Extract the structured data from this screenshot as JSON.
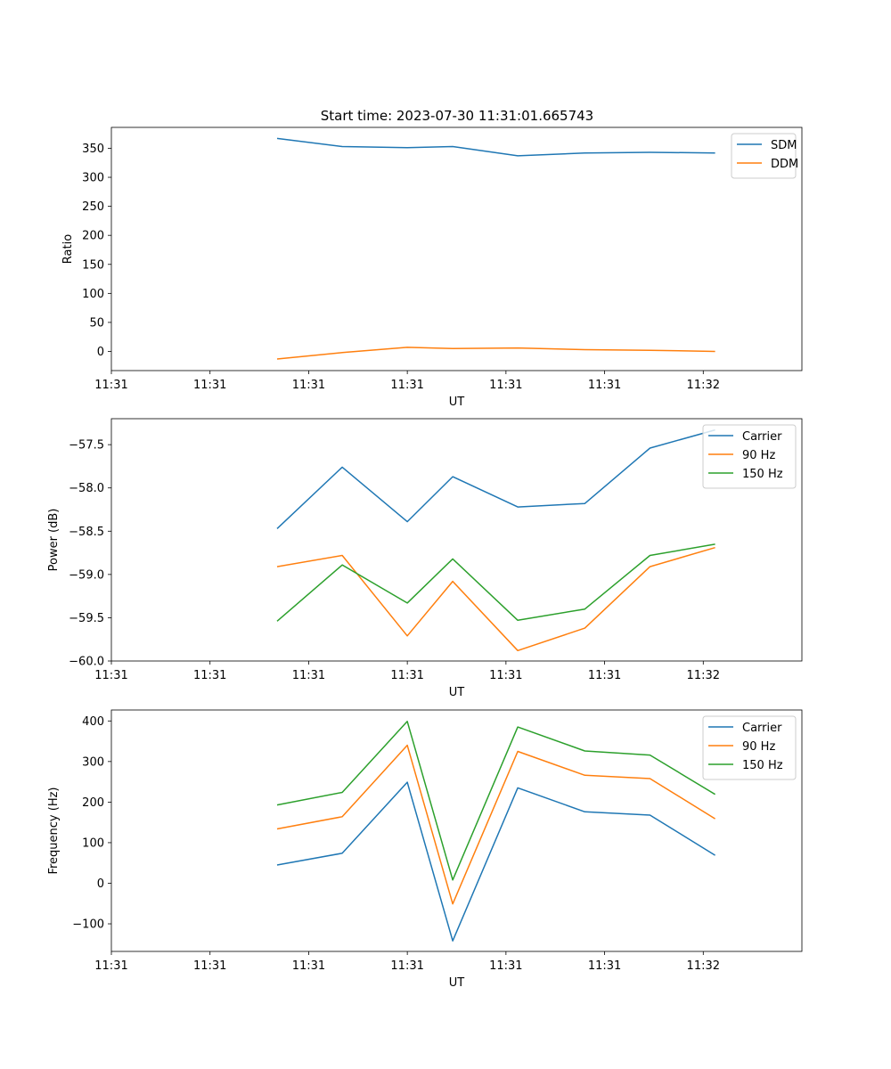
{
  "figure_title": "Start time: 2023-07-30 11:31:01.665743",
  "chart_data": [
    {
      "type": "line",
      "xlabel": "UT",
      "ylabel": "Ratio",
      "x": [
        0.84,
        1.17,
        1.5,
        1.73,
        2.06,
        2.4,
        2.73,
        3.06
      ],
      "xlim": [
        0.0,
        3.5
      ],
      "x_ticks": [
        0.0,
        0.5,
        1.0,
        1.5,
        2.0,
        2.5,
        3.0
      ],
      "x_ticklabels": [
        "11:31",
        "11:31",
        "11:31",
        "11:31",
        "11:31",
        "11:31",
        "11:32"
      ],
      "ylim": [
        -33,
        386
      ],
      "y_ticks": [
        0,
        50,
        100,
        150,
        200,
        250,
        300,
        350
      ],
      "y_ticklabels": [
        "0",
        "50",
        "100",
        "150",
        "200",
        "250",
        "300",
        "350"
      ],
      "legend_position": "top-right",
      "series": [
        {
          "name": "SDM",
          "color": "#1f77b4",
          "values": [
            367,
            353,
            351,
            353,
            337,
            342,
            343,
            342
          ]
        },
        {
          "name": "DDM",
          "color": "#ff7f0e",
          "values": [
            -13,
            -2,
            7,
            5,
            6,
            3,
            2,
            0
          ]
        }
      ]
    },
    {
      "type": "line",
      "xlabel": "UT",
      "ylabel": "Power (dB)",
      "x": [
        0.84,
        1.17,
        1.5,
        1.73,
        2.06,
        2.4,
        2.73,
        3.06
      ],
      "xlim": [
        0.0,
        3.5
      ],
      "x_ticks": [
        0.0,
        0.5,
        1.0,
        1.5,
        2.0,
        2.5,
        3.0
      ],
      "x_ticklabels": [
        "11:31",
        "11:31",
        "11:31",
        "11:31",
        "11:31",
        "11:31",
        "11:32"
      ],
      "ylim": [
        -60.0,
        -57.2
      ],
      "y_ticks": [
        -60.0,
        -59.5,
        -59.0,
        -58.5,
        -58.0,
        -57.5
      ],
      "y_ticklabels": [
        "−60.0",
        "−59.5",
        "−59.0",
        "−58.5",
        "−58.0",
        "−57.5"
      ],
      "legend_position": "top-right",
      "series": [
        {
          "name": "Carrier",
          "color": "#1f77b4",
          "values": [
            -58.47,
            -57.76,
            -58.39,
            -57.87,
            -58.22,
            -58.18,
            -57.54,
            -57.33
          ]
        },
        {
          "name": "90 Hz",
          "color": "#ff7f0e",
          "values": [
            -58.91,
            -58.78,
            -59.71,
            -59.08,
            -59.88,
            -59.62,
            -58.91,
            -58.69
          ]
        },
        {
          "name": "150 Hz",
          "color": "#2ca02c",
          "values": [
            -59.54,
            -58.89,
            -59.33,
            -58.82,
            -59.53,
            -59.4,
            -58.78,
            -58.65
          ]
        }
      ]
    },
    {
      "type": "line",
      "xlabel": "UT",
      "ylabel": "Frequency (Hz)",
      "x": [
        0.84,
        1.17,
        1.5,
        1.73,
        2.06,
        2.4,
        2.73,
        3.06
      ],
      "xlim": [
        0.0,
        3.5
      ],
      "x_ticks": [
        0.0,
        0.5,
        1.0,
        1.5,
        2.0,
        2.5,
        3.0
      ],
      "x_ticklabels": [
        "11:31",
        "11:31",
        "11:31",
        "11:31",
        "11:31",
        "11:31",
        "11:32"
      ],
      "ylim": [
        -168,
        427
      ],
      "y_ticks": [
        -100,
        0,
        100,
        200,
        300,
        400
      ],
      "y_ticklabels": [
        "−100",
        "0",
        "100",
        "200",
        "300",
        "400"
      ],
      "legend_position": "top-right",
      "series": [
        {
          "name": "Carrier",
          "color": "#1f77b4",
          "values": [
            45,
            74,
            249,
            -142,
            235,
            176,
            168,
            69
          ]
        },
        {
          "name": "90 Hz",
          "color": "#ff7f0e",
          "values": [
            134,
            164,
            340,
            -51,
            325,
            266,
            258,
            159
          ]
        },
        {
          "name": "150 Hz",
          "color": "#2ca02c",
          "values": [
            193,
            224,
            399,
            8,
            385,
            326,
            316,
            219
          ]
        }
      ]
    }
  ]
}
